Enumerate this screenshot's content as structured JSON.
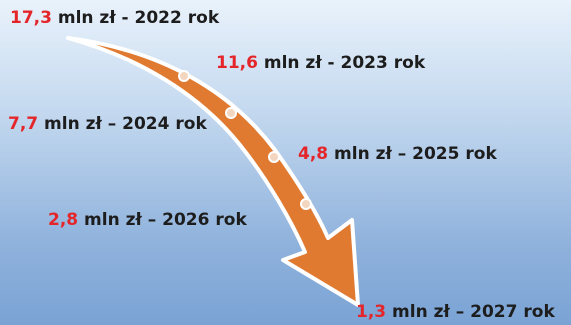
{
  "colors": {
    "arrow_fill": "#e07a30",
    "arrow_stroke": "#ffffff",
    "value_text": "#e4262a",
    "label_text": "#1d1d1d",
    "dot": "#f3d6c0"
  },
  "milestones": [
    {
      "value": "17,3",
      "rest": " mln zł - 2022 rok"
    },
    {
      "value": "11,6",
      "rest": " mln zł - 2023 rok"
    },
    {
      "value": "7,7",
      "rest": " mln zł – 2024 rok"
    },
    {
      "value": "4,8",
      "rest": " mln zł – 2025 rok"
    },
    {
      "value": "2,8",
      "rest": " mln zł – 2026 rok"
    },
    {
      "value": "1,3",
      "rest": " mln zł – 2027 rok"
    }
  ]
}
